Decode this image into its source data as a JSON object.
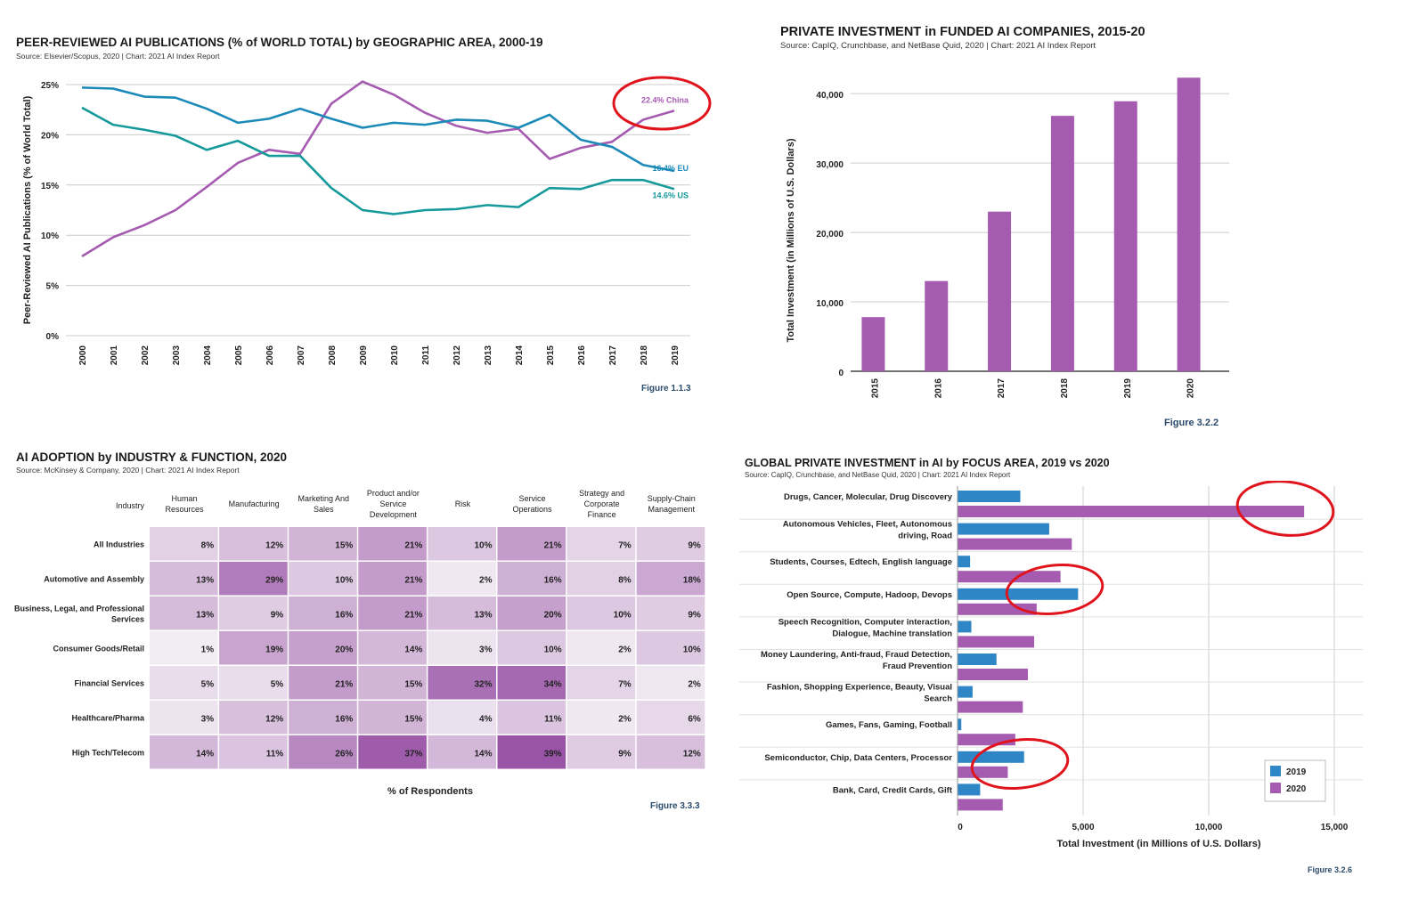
{
  "panels": {
    "pub": {
      "title": "PEER-REVIEWED AI PUBLICATIONS (% of WORLD TOTAL) by GEOGRAPHIC AREA, 2000-19",
      "source": "Source: Elsevier/Scopus, 2020 | Chart: 2021 AI Index Report",
      "figure": "Figure 1.1.3"
    },
    "inv": {
      "title": "PRIVATE INVESTMENT in FUNDED AI COMPANIES, 2015-20",
      "source": "Source: CapIQ, Crunchbase, and NetBase Quid, 2020 | Chart: 2021 AI Index Report",
      "figure": "Figure 3.2.2"
    },
    "adopt": {
      "title": "AI ADOPTION by INDUSTRY & FUNCTION, 2020",
      "source": "Source: McKinsey & Company, 2020 | Chart: 2021 AI Index Report",
      "figure": "Figure 3.3.3"
    },
    "focus": {
      "title": "GLOBAL PRIVATE INVESTMENT in AI by FOCUS AREA, 2019 vs 2020",
      "source": "Source: CapIQ, Crunchbase, and NetBase Quid, 2020 | Chart: 2021 AI Index Report",
      "figure": "Figure 3.2.6"
    }
  },
  "colors": {
    "china": "#a55bb0",
    "eu": "#1b8ab8",
    "us": "#15999a",
    "bar": "#a55bb0",
    "y2019": "#2e86c6",
    "y2020": "#a55bb0",
    "annotation": "#e0141c"
  },
  "chart_data": [
    {
      "type": "line",
      "title": "PEER-REVIEWED AI PUBLICATIONS (% of WORLD TOTAL) by GEOGRAPHIC AREA, 2000-19",
      "xlabel": "",
      "ylabel": "Peer-Reviewed AI Publications (% of World Total)",
      "x": [
        2000,
        2001,
        2002,
        2003,
        2004,
        2005,
        2006,
        2007,
        2008,
        2009,
        2010,
        2011,
        2012,
        2013,
        2014,
        2015,
        2016,
        2017,
        2018,
        2019
      ],
      "ylim": [
        0,
        25
      ],
      "yticks": [
        "0%",
        "5%",
        "10%",
        "15%",
        "20%",
        "25%"
      ],
      "grid": true,
      "series": [
        {
          "name": "China",
          "label": "22.4% China",
          "color": "#a55bb0",
          "values": [
            7.9,
            9.8,
            11.0,
            12.5,
            14.8,
            17.2,
            18.5,
            18.1,
            23.1,
            25.3,
            24.0,
            22.2,
            20.9,
            20.2,
            20.6,
            17.6,
            18.7,
            19.3,
            21.5,
            22.4
          ]
        },
        {
          "name": "EU",
          "label": "16.4% EU",
          "color": "#1b8ab8",
          "values": [
            24.7,
            24.6,
            23.8,
            23.7,
            22.6,
            21.2,
            21.6,
            22.6,
            21.6,
            20.7,
            21.2,
            21.0,
            21.5,
            21.4,
            20.7,
            22.0,
            19.5,
            18.8,
            17.0,
            16.4
          ]
        },
        {
          "name": "US",
          "label": "14.6% US",
          "color": "#15999a",
          "values": [
            22.7,
            21.0,
            20.5,
            19.9,
            18.5,
            19.4,
            17.9,
            17.9,
            14.7,
            12.5,
            12.1,
            12.5,
            12.6,
            13.0,
            12.8,
            14.7,
            14.6,
            15.5,
            15.5,
            14.6
          ]
        }
      ],
      "annotation": "22.4% China circled in red"
    },
    {
      "type": "bar",
      "title": "PRIVATE INVESTMENT in FUNDED AI COMPANIES, 2015-20",
      "xlabel": "",
      "ylabel": "Total Investment (in Millions of U.S. Dollars)",
      "categories": [
        "2015",
        "2016",
        "2017",
        "2018",
        "2019",
        "2020"
      ],
      "values": [
        7800,
        13000,
        23000,
        36800,
        38900,
        42300
      ],
      "ylim": [
        0,
        44000
      ],
      "yticks": [
        "0",
        "10,000",
        "20,000",
        "30,000",
        "40,000"
      ],
      "grid": true
    },
    {
      "type": "heatmap",
      "title": "AI ADOPTION by INDUSTRY & FUNCTION, 2020",
      "xlabel": "% of Respondents",
      "corner": "Industry",
      "columns": [
        "Human Resources",
        "Manufacturing",
        "Marketing And Sales",
        "Product and/or Service Development",
        "Risk",
        "Service Operations",
        "Strategy and Corporate Finance",
        "Supply-Chain Management"
      ],
      "rows": [
        "All Industries",
        "Automotive and Assembly",
        "Business, Legal, and Professional Services",
        "Consumer Goods/Retail",
        "Financial Services",
        "Healthcare/Pharma",
        "High Tech/Telecom"
      ],
      "values": [
        [
          8,
          12,
          15,
          21,
          10,
          21,
          7,
          9
        ],
        [
          13,
          29,
          10,
          21,
          2,
          16,
          8,
          18
        ],
        [
          13,
          9,
          16,
          21,
          13,
          20,
          10,
          9
        ],
        [
          1,
          19,
          20,
          14,
          3,
          10,
          2,
          10
        ],
        [
          5,
          5,
          21,
          15,
          32,
          34,
          7,
          2
        ],
        [
          3,
          12,
          16,
          15,
          4,
          11,
          2,
          6
        ],
        [
          14,
          11,
          26,
          37,
          14,
          39,
          9,
          12
        ]
      ],
      "value_suffix": "%"
    },
    {
      "type": "bar",
      "orientation": "horizontal",
      "title": "GLOBAL PRIVATE INVESTMENT in AI by FOCUS AREA, 2019 vs 2020",
      "xlabel": "Total Investment (in Millions of U.S. Dollars)",
      "ylabel": "",
      "categories": [
        "Drugs, Cancer, Molecular, Drug Discovery",
        "Autonomous Vehicles, Fleet, Autonomous driving, Road",
        "Students, Courses, Edtech, English language",
        "Open Source, Compute, Hadoop, Devops",
        "Speech Recognition, Computer interaction, Dialogue, Machine translation",
        "Money Laundering, Anti-fraud, Fraud Detection, Fraud Prevention",
        "Fashion, Shopping Experience, Beauty, Visual Search",
        "Games, Fans, Gaming, Football",
        "Semiconductor, Chip, Data Centers, Processor",
        "Bank, Card, Credit Cards, Gift"
      ],
      "category_lines": [
        [
          "Drugs, Cancer, Molecular, Drug Discovery"
        ],
        [
          "Autonomous Vehicles, Fleet, Autonomous",
          "driving, Road"
        ],
        [
          "Students, Courses, Edtech, English language"
        ],
        [
          "Open Source, Compute, Hadoop, Devops"
        ],
        [
          "Speech Recognition, Computer interaction,",
          "Dialogue, Machine translation"
        ],
        [
          "Money Laundering, Anti-fraud, Fraud Detection,",
          "Fraud Prevention"
        ],
        [
          "Fashion, Shopping Experience, Beauty, Visual",
          "Search"
        ],
        [
          "Games, Fans, Gaming, Football"
        ],
        [
          "Semiconductor, Chip, Data Centers, Processor"
        ],
        [
          "Bank, Card, Credit Cards, Gift"
        ]
      ],
      "series": [
        {
          "name": "2019",
          "color": "#2e86c6",
          "values": [
            2500,
            3650,
            500,
            4800,
            550,
            1550,
            600,
            150,
            2650,
            900
          ]
        },
        {
          "name": "2020",
          "color": "#a55bb0",
          "values": [
            13800,
            4550,
            4100,
            3150,
            3050,
            2800,
            2600,
            2300,
            2000,
            1800
          ]
        }
      ],
      "xlim": [
        0,
        16000
      ],
      "xticks": [
        "0",
        "5,000",
        "10,000",
        "15,000"
      ],
      "legend": "bottom-right",
      "grid": true,
      "annotations": "red circles around Drugs 2020 bar end, Open Source 2019 bar end, Semiconductor bars"
    }
  ]
}
